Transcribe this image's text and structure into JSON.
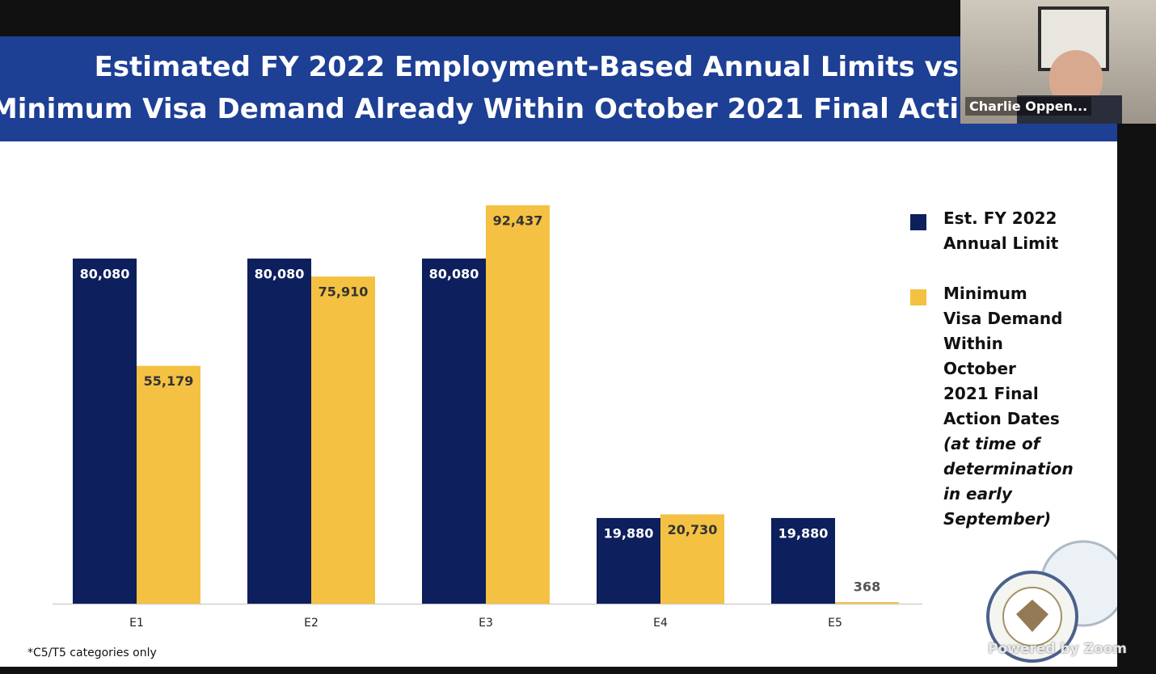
{
  "banner": {
    "title_lines": [
      "Estimated FY 2022 Employment-Based Annual Limits vs",
      "Minimum Visa Demand Already Within October 2021 Final Acti"
    ]
  },
  "chart_data": {
    "type": "bar",
    "categories": [
      "E1",
      "E2",
      "E3",
      "E4",
      "E5"
    ],
    "series": [
      {
        "name": "Est. FY 2022 Annual Limit",
        "color": "#0d1f5c",
        "values": [
          80080,
          80080,
          80080,
          19880,
          19880
        ],
        "value_labels": [
          "80,080",
          "80,080",
          "80,080",
          "19,880",
          "19,880"
        ]
      },
      {
        "name": "Minimum Visa Demand Within October 2021 Final Action Dates",
        "color": "#f4c142",
        "values": [
          55179,
          75910,
          92437,
          20730,
          368
        ],
        "value_labels": [
          "55,179",
          "75,910",
          "92,437",
          "20,730",
          "368"
        ]
      }
    ],
    "legend_note": "(at time of determination in early September)",
    "footnote": "*C5/T5 categories only"
  },
  "video": {
    "participant_name": "Charlie Oppen...",
    "watermark": "Powered by Zoom"
  }
}
